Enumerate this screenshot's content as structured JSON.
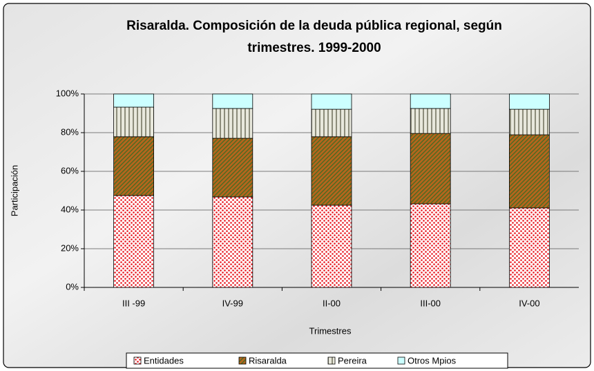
{
  "chart_data": {
    "type": "stacked_bar",
    "title": "Risaralda. Composición de la deuda pública regional, según",
    "subtitle": "trimestres. 1999-2000",
    "x_label": "Trimestres",
    "y_label": "Participación",
    "categories": [
      "III -99",
      "IV-99",
      "II-00",
      "III-00",
      "IV-00"
    ],
    "series": [
      {
        "name": "Entidades",
        "color": "#e8141c",
        "pattern": "dots",
        "values": [
          47.5,
          46.8,
          42.5,
          43.2,
          41.1
        ]
      },
      {
        "name": "Risaralda",
        "color": "#b5651d",
        "pattern": "diagonal",
        "values": [
          30.4,
          30.3,
          35.4,
          36.4,
          37.8
        ]
      },
      {
        "name": "Pereira",
        "color": "#8c8c7a",
        "pattern": "vertical",
        "values": [
          15.3,
          15.4,
          14.2,
          12.9,
          13.2
        ]
      },
      {
        "name": "Otros Mpios",
        "color": "#ccffff",
        "pattern": "solid",
        "values": [
          6.8,
          7.5,
          7.9,
          7.5,
          7.9
        ]
      }
    ],
    "ylim": [
      0,
      100
    ],
    "yticks": [
      {
        "value": 0,
        "label": "0%"
      },
      {
        "value": 20,
        "label": "20%"
      },
      {
        "value": 40,
        "label": "40%"
      },
      {
        "value": 60,
        "label": "60%"
      },
      {
        "value": 80,
        "label": "80%"
      },
      {
        "value": 100,
        "label": "100%"
      }
    ],
    "grid": true,
    "legend": "bottom"
  }
}
